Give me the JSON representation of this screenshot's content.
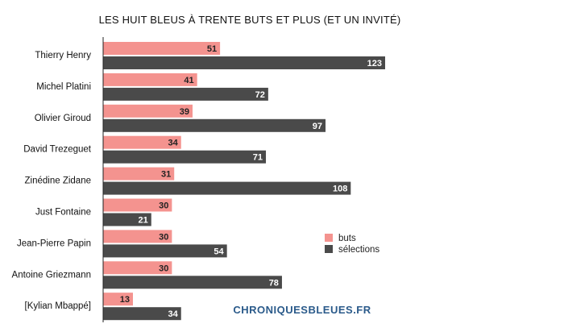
{
  "chart_data": {
    "type": "bar",
    "orientation": "horizontal",
    "title": "LES HUIT BLEUS À TRENTE BUTS ET PLUS (ET UN INVITÉ)",
    "categories": [
      "Thierry Henry",
      "Michel Platini",
      "Olivier Giroud",
      "David Trezeguet",
      "Zinédine Zidane",
      "Just Fontaine",
      "Jean-Pierre Papin",
      "Antoine Griezmann",
      "[Kylian Mbappé]"
    ],
    "series": [
      {
        "name": "buts",
        "color": "#f4938f",
        "label_color": "#222222",
        "values": [
          51,
          41,
          39,
          34,
          31,
          30,
          30,
          30,
          13
        ]
      },
      {
        "name": "sélections",
        "color": "#4a4a4a",
        "label_color": "#ffffff",
        "values": [
          123,
          72,
          97,
          71,
          108,
          21,
          54,
          78,
          34
        ]
      }
    ],
    "xlim": [
      0,
      123
    ],
    "grid": false,
    "legend_position": "right"
  },
  "brand": "CHRONIQUESBLEUES.FR"
}
